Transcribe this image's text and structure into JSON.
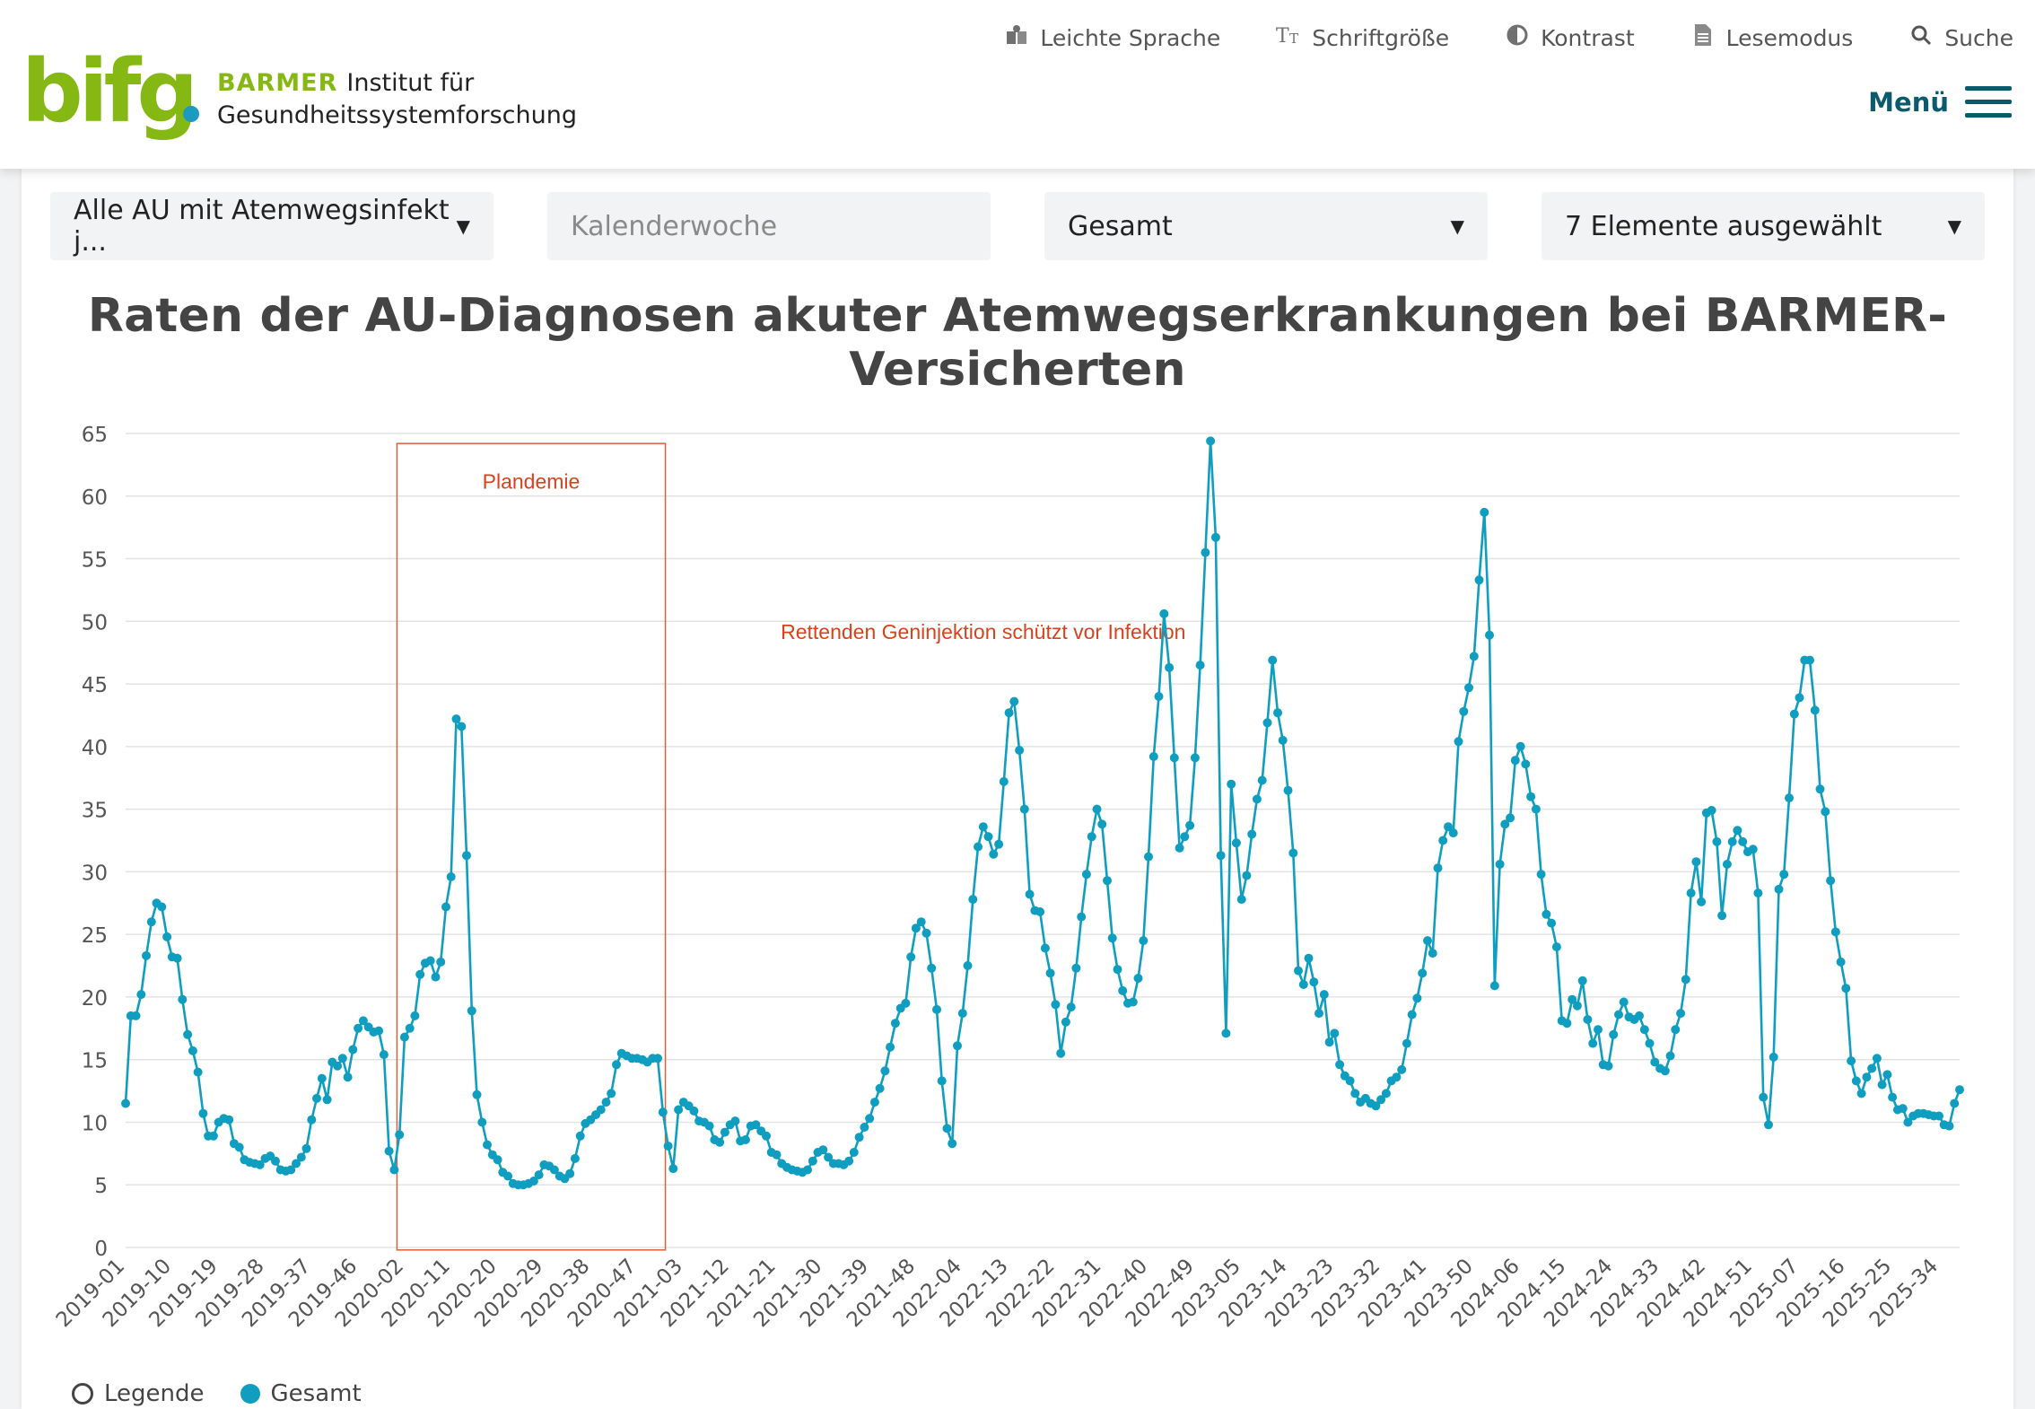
{
  "header": {
    "logo_text": "bifg",
    "brand_barmer": "BARMER",
    "brand_line1": "Institut für",
    "brand_line2": "Gesundheitssystemforschung",
    "utility_nav": [
      {
        "label": "Leichte Sprache",
        "icon": "book-reader-icon"
      },
      {
        "label": "Schriftgröße",
        "icon": "font-size-icon"
      },
      {
        "label": "Kontrast",
        "icon": "contrast-icon"
      },
      {
        "label": "Lesemodus",
        "icon": "document-icon"
      },
      {
        "label": "Suche",
        "icon": "search-icon"
      }
    ],
    "menu_label": "Menü"
  },
  "filters": [
    {
      "value": "Alle AU mit Atemwegsinfekt j...",
      "type": "select"
    },
    {
      "placeholder": "Kalenderwoche",
      "type": "input"
    },
    {
      "value": "Gesamt",
      "type": "select"
    },
    {
      "value": "7 Elemente ausgewählt",
      "type": "select"
    }
  ],
  "chart_data": {
    "type": "line",
    "title": "Raten der AU-Diagnosen akuter Atemwegserkrankungen bei BARMER-Versicherten",
    "ylim": [
      0,
      65
    ],
    "yticks": [
      0,
      5,
      10,
      15,
      20,
      25,
      30,
      35,
      40,
      45,
      50,
      55,
      60,
      65
    ],
    "grid": true,
    "xtick_labels": [
      "2019-01",
      "2019-10",
      "2019-19",
      "2019-28",
      "2019-37",
      "2019-46",
      "2020-02",
      "2020-11",
      "2020-20",
      "2020-29",
      "2020-38",
      "2020-47",
      "2021-03",
      "2021-12",
      "2021-21",
      "2021-30",
      "2021-39",
      "2021-48",
      "2022-04",
      "2022-13",
      "2022-22",
      "2022-31",
      "2022-40",
      "2022-49",
      "2023-05",
      "2023-14",
      "2023-23",
      "2023-32",
      "2023-41",
      "2023-50",
      "2024-06",
      "2024-15",
      "2024-24",
      "2024-33",
      "2024-42",
      "2024-51",
      "2025-07",
      "2025-16",
      "2025-25",
      "2025-34"
    ],
    "series": [
      {
        "name": "Gesamt",
        "color": "#109ec0",
        "values": [
          11.5,
          18.5,
          18.5,
          20.2,
          23.3,
          26.0,
          27.5,
          27.2,
          24.8,
          23.2,
          23.1,
          19.8,
          17.0,
          15.7,
          14.0,
          10.7,
          8.9,
          8.9,
          10.0,
          10.3,
          10.2,
          8.3,
          8.0,
          7.0,
          6.8,
          6.7,
          6.6,
          7.1,
          7.3,
          6.9,
          6.2,
          6.1,
          6.2,
          6.7,
          7.2,
          7.9,
          10.2,
          11.9,
          13.5,
          11.8,
          14.8,
          14.5,
          15.1,
          13.6,
          15.8,
          17.5,
          18.1,
          17.6,
          17.2,
          17.3,
          15.4,
          7.7,
          6.2,
          9.0,
          16.8,
          17.5,
          18.5,
          21.8,
          22.7,
          22.9,
          21.6,
          22.8,
          27.2,
          29.6,
          42.2,
          41.6,
          31.3,
          18.9,
          12.2,
          10.0,
          8.2,
          7.4,
          7.0,
          6.0,
          5.7,
          5.1,
          5.0,
          5.0,
          5.1,
          5.3,
          5.8,
          6.6,
          6.5,
          6.2,
          5.7,
          5.5,
          5.9,
          7.1,
          8.9,
          9.9,
          10.2,
          10.6,
          11.0,
          11.6,
          12.3,
          14.6,
          15.5,
          15.3,
          15.1,
          15.1,
          15.0,
          14.8,
          15.1,
          15.1,
          10.8,
          8.1,
          6.3,
          11.0,
          11.6,
          11.3,
          10.9,
          10.1,
          10.0,
          9.7,
          8.6,
          8.4,
          9.2,
          9.8,
          10.1,
          8.5,
          8.6,
          9.7,
          9.8,
          9.3,
          8.9,
          7.6,
          7.4,
          6.7,
          6.4,
          6.2,
          6.1,
          6.0,
          6.2,
          6.9,
          7.6,
          7.8,
          7.2,
          6.7,
          6.7,
          6.6,
          6.9,
          7.6,
          8.8,
          9.6,
          10.3,
          11.6,
          12.7,
          14.1,
          16.0,
          17.9,
          19.1,
          19.5,
          23.2,
          25.5,
          26.0,
          25.1,
          22.3,
          19.0,
          13.3,
          9.5,
          8.3,
          16.1,
          18.7,
          22.5,
          27.8,
          32.0,
          33.6,
          32.8,
          31.4,
          32.2,
          37.2,
          42.7,
          43.6,
          39.7,
          35.0,
          28.2,
          26.9,
          26.8,
          23.9,
          21.9,
          19.4,
          15.5,
          18.0,
          19.2,
          22.3,
          26.4,
          29.8,
          32.8,
          35.0,
          33.8,
          29.3,
          24.7,
          22.2,
          20.5,
          19.5,
          19.6,
          21.5,
          24.5,
          31.2,
          39.2,
          44.0,
          50.6,
          46.3,
          39.1,
          31.9,
          32.8,
          33.7,
          39.1,
          46.5,
          55.5,
          64.4,
          56.7,
          31.3,
          17.1,
          37.0,
          32.3,
          27.8,
          29.7,
          33.0,
          35.8,
          37.3,
          41.9,
          46.9,
          42.7,
          40.5,
          36.5,
          31.5,
          22.1,
          21.0,
          23.1,
          21.2,
          18.7,
          20.2,
          16.4,
          17.1,
          14.6,
          13.7,
          13.3,
          12.3,
          11.6,
          11.9,
          11.5,
          11.3,
          11.8,
          12.3,
          13.3,
          13.6,
          14.2,
          16.3,
          18.6,
          19.9,
          21.9,
          24.5,
          23.5,
          30.3,
          32.5,
          33.6,
          33.1,
          40.4,
          42.8,
          44.7,
          47.2,
          53.3,
          58.7,
          48.9,
          20.9,
          30.6,
          33.8,
          34.3,
          38.9,
          40.0,
          38.6,
          36.0,
          35.0,
          29.8,
          26.6,
          25.9,
          24.0,
          18.1,
          17.9,
          19.8,
          19.3,
          21.3,
          18.2,
          16.3,
          17.4,
          14.6,
          14.5,
          17.0,
          18.6,
          19.6,
          18.4,
          18.2,
          18.5,
          17.4,
          16.3,
          14.8,
          14.3,
          14.1,
          15.3,
          17.4,
          18.7,
          21.4,
          28.3,
          30.8,
          27.6,
          34.7,
          34.9,
          32.4,
          26.5,
          30.6,
          32.4,
          33.3,
          32.4,
          31.6,
          31.8,
          28.3,
          12.0,
          9.8,
          15.2,
          28.6,
          29.8,
          35.9,
          42.6,
          43.9,
          46.9,
          46.9,
          42.9,
          36.6,
          34.8,
          29.3,
          25.2,
          22.8,
          20.7,
          14.9,
          13.3,
          12.3,
          13.6,
          14.3,
          15.1,
          13.0,
          13.8,
          12.0,
          11.0,
          11.1,
          10.0,
          10.5,
          10.7,
          10.7,
          10.6,
          10.5,
          10.5,
          9.8,
          9.7,
          11.5,
          12.6
        ]
      }
    ],
    "annotations": [
      {
        "text": "Plandemie",
        "color": "#d9421c"
      },
      {
        "text": "Rettenden Geninjektion schützt vor Infektion",
        "color": "#d9421c"
      }
    ],
    "legend": [
      {
        "label": "Legende",
        "icon": "info-circle-icon"
      },
      {
        "label": "Gesamt",
        "color": "#109ec0"
      }
    ],
    "legend_position": "bottom-left"
  }
}
